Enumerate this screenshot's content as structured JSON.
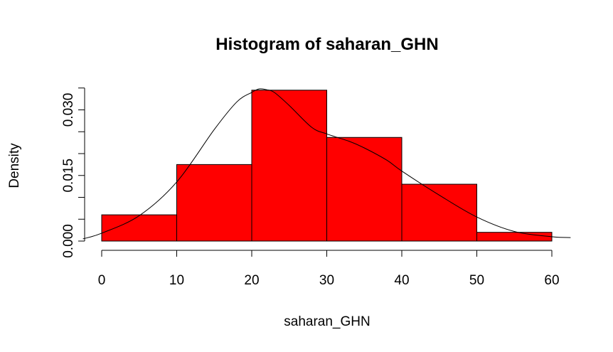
{
  "chart_data": {
    "type": "histogram",
    "title": "Histogram of saharan_GHN",
    "xlabel": "saharan_GHN",
    "ylabel": "Density",
    "bins": [
      {
        "start": 0,
        "end": 10,
        "density": 0.006
      },
      {
        "start": 10,
        "end": 20,
        "density": 0.0175
      },
      {
        "start": 20,
        "end": 30,
        "density": 0.0345
      },
      {
        "start": 30,
        "end": 40,
        "density": 0.0237
      },
      {
        "start": 40,
        "end": 50,
        "density": 0.013
      },
      {
        "start": 50,
        "end": 60,
        "density": 0.002
      }
    ],
    "bar_color": "#ff0000",
    "x_ticks": [
      "0",
      "10",
      "20",
      "30",
      "40",
      "50",
      "60"
    ],
    "y_ticks": [
      "0.000",
      "0.015",
      "0.030"
    ],
    "xlim": [
      -2.5,
      62.5
    ],
    "ylim": [
      0,
      0.0345
    ],
    "density_curve": {
      "x": [
        -2.5,
        0,
        5,
        10,
        15,
        18,
        20,
        21,
        22,
        23,
        25,
        28,
        30,
        33,
        35,
        38,
        40,
        45,
        50,
        55,
        60,
        62.5
      ],
      "y": [
        0.0005,
        0.0018,
        0.0058,
        0.0135,
        0.0255,
        0.0318,
        0.034,
        0.0348,
        0.0346,
        0.034,
        0.031,
        0.026,
        0.0245,
        0.0228,
        0.0213,
        0.0185,
        0.016,
        0.0105,
        0.0055,
        0.0022,
        0.001,
        0.0008
      ]
    }
  }
}
